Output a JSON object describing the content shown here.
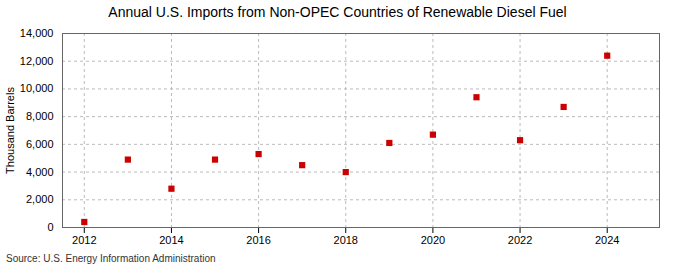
{
  "chart_data": {
    "type": "scatter",
    "title": "Annual U.S. Imports from Non-OPEC Countries of Renewable Diesel Fuel",
    "ylabel": "Thousand Barrels",
    "source": "Source: U.S. Energy Information Administration",
    "x": [
      2012,
      2013,
      2014,
      2015,
      2016,
      2017,
      2018,
      2019,
      2020,
      2021,
      2022,
      2023,
      2024
    ],
    "values": [
      400,
      4900,
      2800,
      4900,
      5300,
      4500,
      4000,
      6100,
      6700,
      9400,
      6300,
      8700,
      12400
    ],
    "color": "#cc0000",
    "marker": "square",
    "xlim": [
      2011.5,
      2025.2
    ],
    "xticks": [
      2012,
      2014,
      2016,
      2018,
      2020,
      2022,
      2024
    ],
    "ylim": [
      0,
      14000
    ],
    "yticks": [
      0,
      {
        "value": 2000,
        "label": "2,000"
      },
      {
        "value": 4000,
        "label": "4,000"
      },
      {
        "value": 6000,
        "label": "6,000"
      },
      {
        "value": 8000,
        "label": "8,000"
      },
      {
        "value": 10000,
        "label": "10,000"
      },
      {
        "value": 12000,
        "label": "12,000"
      },
      {
        "value": 14000,
        "label": "14,000"
      }
    ],
    "grid": true
  }
}
